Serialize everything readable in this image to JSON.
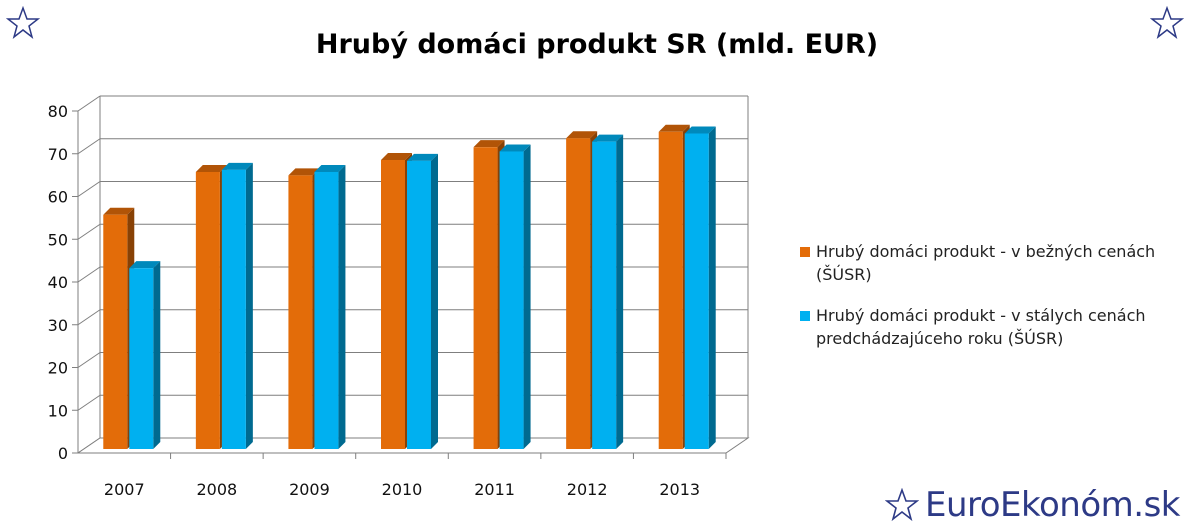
{
  "brand": {
    "name": "EuroEkonóm.sk"
  },
  "colors": {
    "series1": "#e36c09",
    "series2": "#00b0f0",
    "brand": "#2d3a86"
  },
  "chart_data": {
    "type": "bar",
    "title": "Hrubý domáci produkt SR (mld. EUR)",
    "categories": [
      "2007",
      "2008",
      "2009",
      "2010",
      "2011",
      "2012",
      "2013"
    ],
    "series": [
      {
        "name": "Hrubý domáci produkt - v bežných cenách (ŠÚSR)",
        "values": [
          54.8,
          64.8,
          64.0,
          67.6,
          70.6,
          72.7,
          74.2
        ]
      },
      {
        "name": "Hrubý domáci produkt - v stálych cenách predchádzajúceho roku (ŠÚSR)",
        "values": [
          42.3,
          65.3,
          64.8,
          67.4,
          69.6,
          71.9,
          73.8
        ]
      }
    ],
    "yticks": [
      "0",
      "10",
      "20",
      "30",
      "40",
      "50",
      "60",
      "70",
      "80"
    ],
    "ylim": [
      0,
      80
    ],
    "grid": true,
    "legend": "right"
  }
}
